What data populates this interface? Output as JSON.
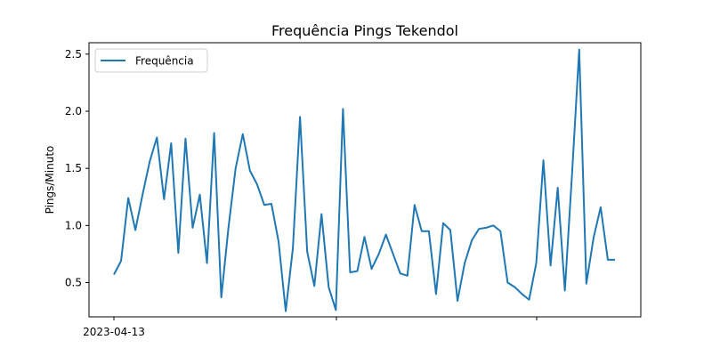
{
  "chart_data": {
    "type": "line",
    "title": "Frequência Pings Tekendol",
    "xlabel": "",
    "ylabel": "Pings/Minuto",
    "x_tick_labels": [
      "2023-04-13",
      "",
      ""
    ],
    "ylim": [
      0.2,
      2.6
    ],
    "y_ticks": [
      0.5,
      1.0,
      1.5,
      2.0,
      2.5
    ],
    "y_tick_labels": [
      "0.5",
      "1.0",
      "1.5",
      "2.0",
      "2.5"
    ],
    "grid": false,
    "legend_position": "top-left",
    "series": [
      {
        "name": "Frequência",
        "color": "#1f77b4",
        "values": [
          0.57,
          0.69,
          1.24,
          0.96,
          1.27,
          1.56,
          1.77,
          1.23,
          1.72,
          0.76,
          1.76,
          0.98,
          1.27,
          0.67,
          1.81,
          0.37,
          0.98,
          1.5,
          1.8,
          1.48,
          1.36,
          1.18,
          1.19,
          0.86,
          0.25,
          0.8,
          1.95,
          0.77,
          0.47,
          1.1,
          0.46,
          0.26,
          2.02,
          0.59,
          0.6,
          0.9,
          0.62,
          0.75,
          0.92,
          0.75,
          0.58,
          0.56,
          1.18,
          0.95,
          0.95,
          0.4,
          1.02,
          0.96,
          0.34,
          0.67,
          0.87,
          0.97,
          0.98,
          1.0,
          0.95,
          0.5,
          0.46,
          0.4,
          0.35,
          0.67,
          1.57,
          0.65,
          1.33,
          0.43,
          1.45,
          2.54,
          0.49,
          0.89,
          1.16,
          0.7,
          0.7
        ]
      }
    ]
  }
}
